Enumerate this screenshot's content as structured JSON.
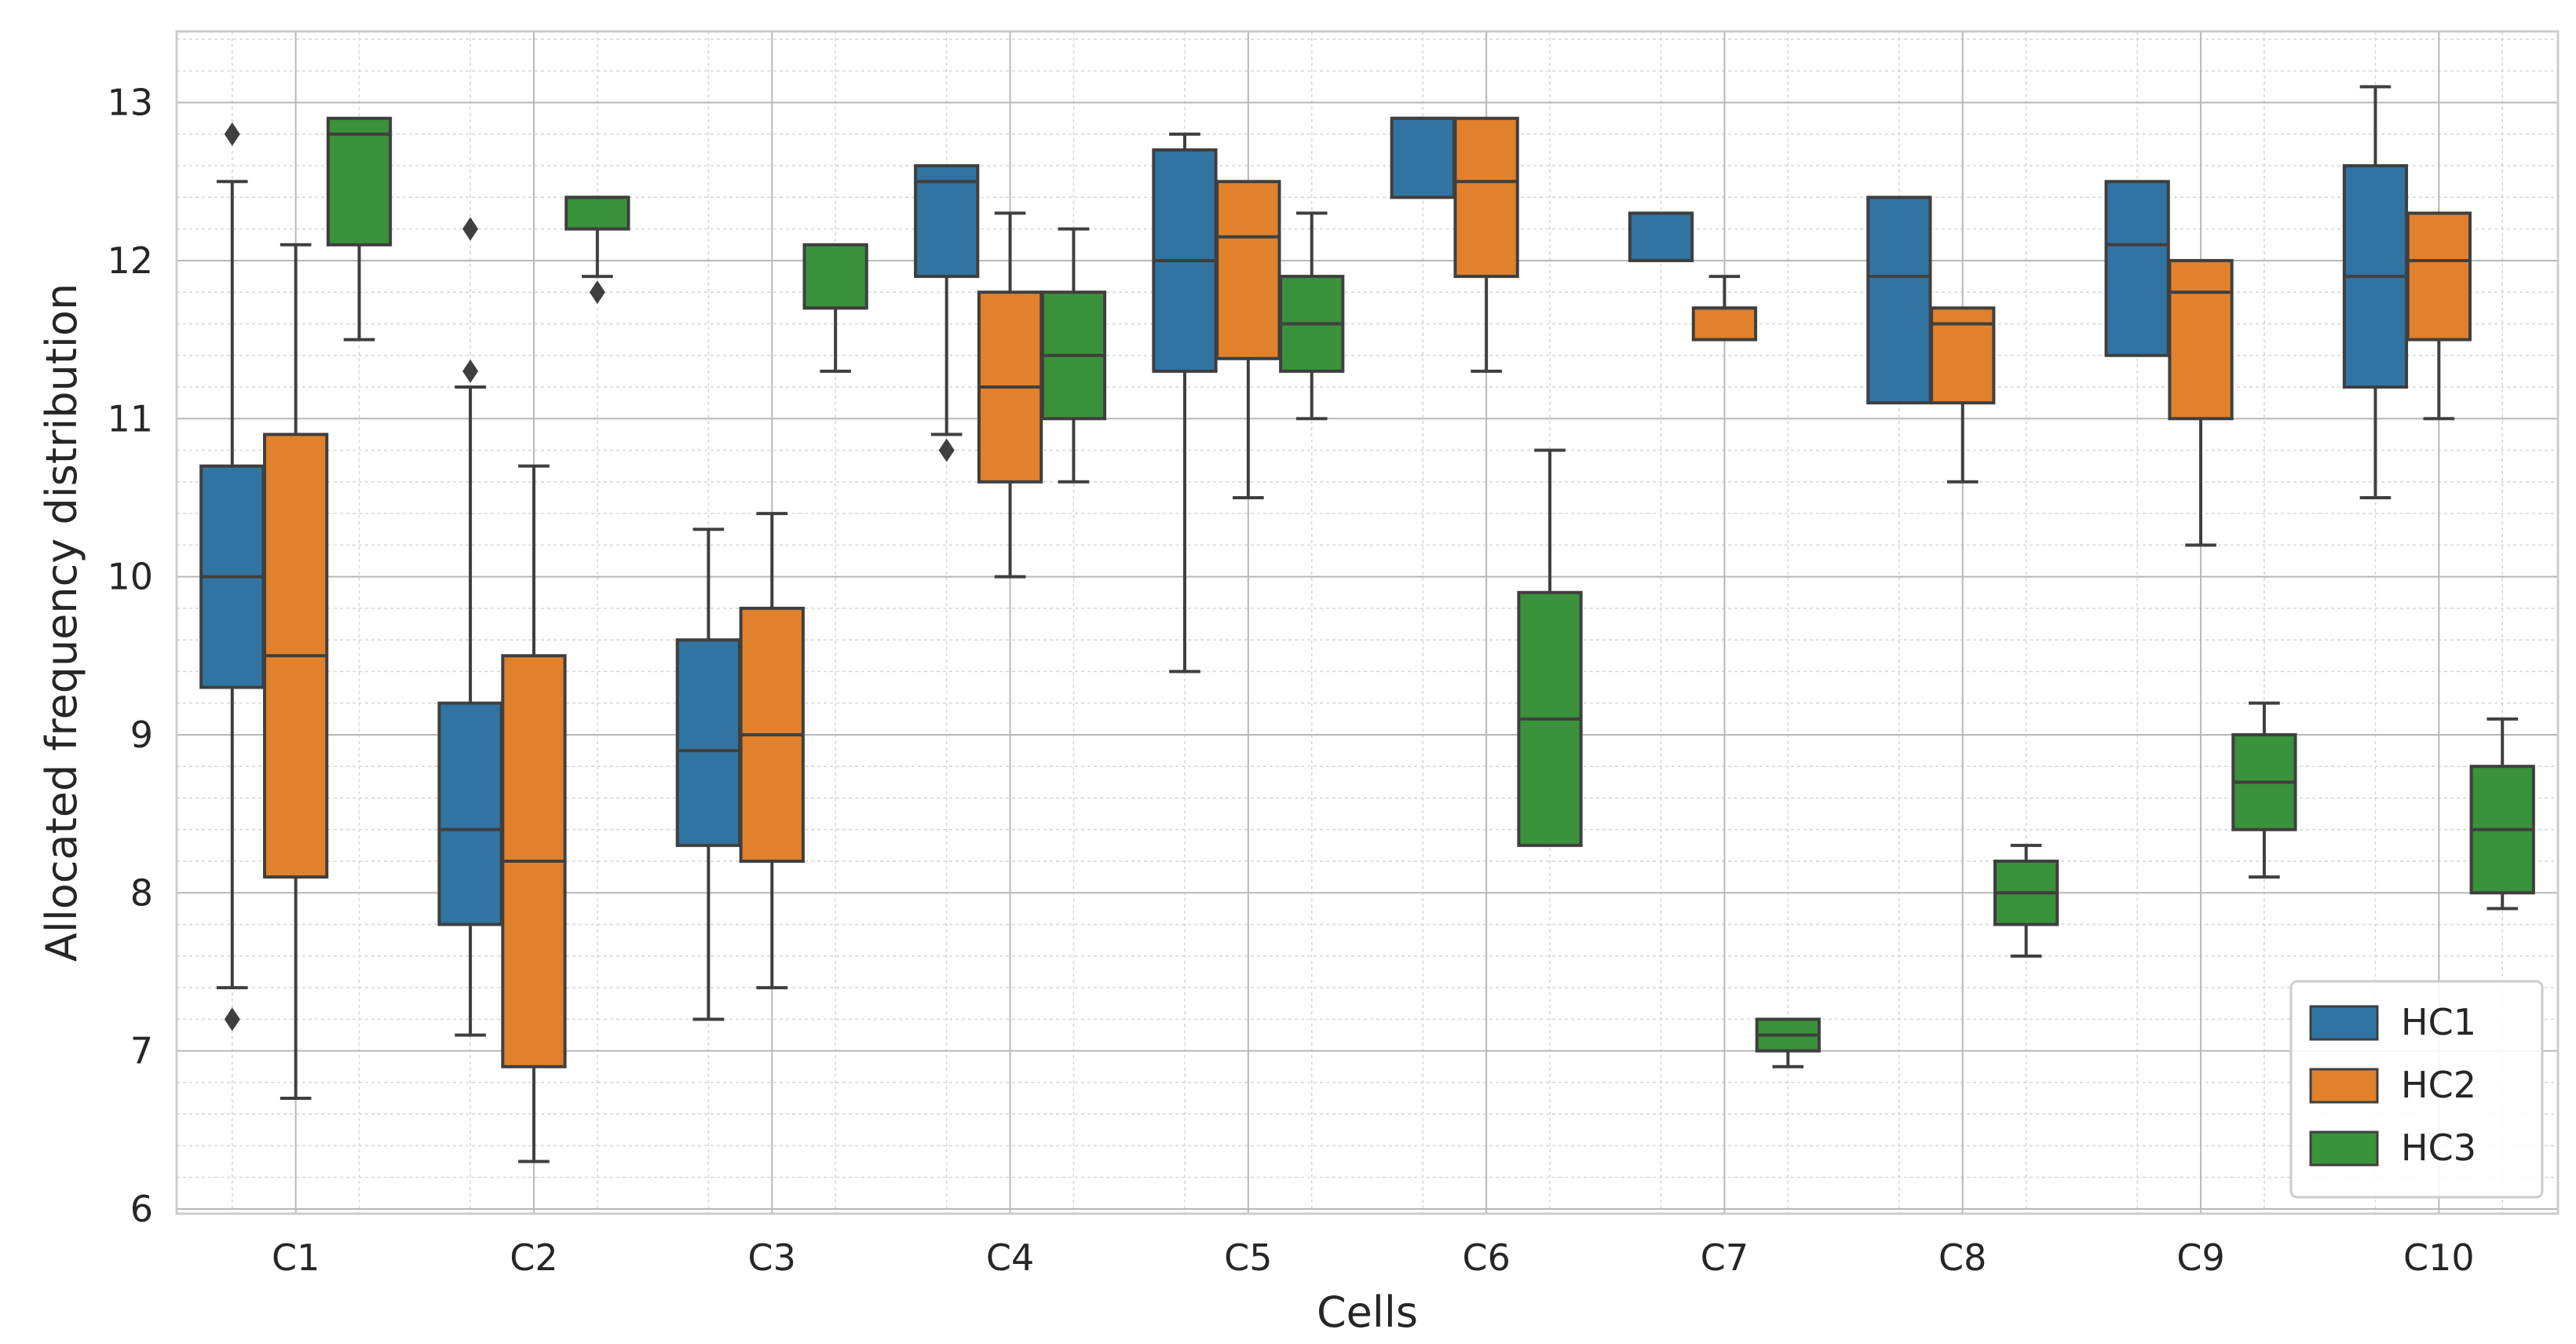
{
  "chart_data": {
    "type": "box",
    "title": "",
    "xlabel": "Cells",
    "ylabel": "Allocated frequency distribution",
    "ylim": [
      5.97,
      13.45
    ],
    "yticks": [
      6,
      7,
      8,
      9,
      10,
      11,
      12,
      13
    ],
    "minor_y_step": 0.2,
    "grid": true,
    "legend_position": "bottom-right",
    "categories": [
      "C1",
      "C2",
      "C3",
      "C4",
      "C5",
      "C6",
      "C7",
      "C8",
      "C9",
      "C10"
    ],
    "series": [
      {
        "name": "HC1",
        "color": "#3274a1",
        "boxes": [
          {
            "whislo": 7.4,
            "q1": 9.3,
            "med": 10.0,
            "q3": 10.7,
            "whishi": 12.5,
            "fliers": [
              7.2,
              12.8
            ]
          },
          {
            "whislo": 7.1,
            "q1": 7.8,
            "med": 8.4,
            "q3": 9.2,
            "whishi": 11.2,
            "fliers": [
              11.3,
              12.2
            ]
          },
          {
            "whislo": 7.2,
            "q1": 8.3,
            "med": 8.9,
            "q3": 9.6,
            "whishi": 10.3,
            "fliers": []
          },
          {
            "whislo": 10.9,
            "q1": 11.9,
            "med": 12.5,
            "q3": 12.6,
            "whishi": 12.6,
            "fliers": [
              10.8
            ]
          },
          {
            "whislo": 9.4,
            "q1": 11.3,
            "med": 12.0,
            "q3": 12.7,
            "whishi": 12.8,
            "fliers": []
          },
          {
            "whislo": 12.4,
            "q1": 12.4,
            "med": 12.9,
            "q3": 12.9,
            "whishi": 12.9,
            "fliers": []
          },
          {
            "whislo": 12.0,
            "q1": 12.0,
            "med": 12.3,
            "q3": 12.3,
            "whishi": 12.3,
            "fliers": []
          },
          {
            "whislo": 11.1,
            "q1": 11.1,
            "med": 11.9,
            "q3": 12.4,
            "whishi": 12.4,
            "fliers": []
          },
          {
            "whislo": 11.4,
            "q1": 11.4,
            "med": 12.1,
            "q3": 12.5,
            "whishi": 12.5,
            "fliers": []
          },
          {
            "whislo": 10.5,
            "q1": 11.2,
            "med": 11.9,
            "q3": 12.6,
            "whishi": 13.1,
            "fliers": []
          }
        ]
      },
      {
        "name": "HC2",
        "color": "#e1812c",
        "boxes": [
          {
            "whislo": 6.7,
            "q1": 8.1,
            "med": 9.5,
            "q3": 10.9,
            "whishi": 12.1,
            "fliers": []
          },
          {
            "whislo": 6.3,
            "q1": 6.9,
            "med": 8.2,
            "q3": 9.5,
            "whishi": 10.7,
            "fliers": []
          },
          {
            "whislo": 7.4,
            "q1": 8.2,
            "med": 9.0,
            "q3": 9.8,
            "whishi": 10.4,
            "fliers": []
          },
          {
            "whislo": 10.0,
            "q1": 10.6,
            "med": 11.2,
            "q3": 11.8,
            "whishi": 12.3,
            "fliers": []
          },
          {
            "whislo": 10.5,
            "q1": 11.38,
            "med": 12.15,
            "q3": 12.5,
            "whishi": 12.5,
            "fliers": []
          },
          {
            "whislo": 11.3,
            "q1": 11.9,
            "med": 12.5,
            "q3": 12.9,
            "whishi": 12.9,
            "fliers": []
          },
          {
            "whislo": 11.5,
            "q1": 11.5,
            "med": 11.7,
            "q3": 11.7,
            "whishi": 11.9,
            "fliers": []
          },
          {
            "whislo": 10.6,
            "q1": 11.1,
            "med": 11.6,
            "q3": 11.7,
            "whishi": 11.7,
            "fliers": []
          },
          {
            "whislo": 10.2,
            "q1": 11.0,
            "med": 11.8,
            "q3": 12.0,
            "whishi": 12.0,
            "fliers": []
          },
          {
            "whislo": 11.0,
            "q1": 11.5,
            "med": 12.0,
            "q3": 12.3,
            "whishi": 12.3,
            "fliers": []
          }
        ]
      },
      {
        "name": "HC3",
        "color": "#3a923a",
        "boxes": [
          {
            "whislo": 11.5,
            "q1": 12.1,
            "med": 12.8,
            "q3": 12.9,
            "whishi": 12.9,
            "fliers": []
          },
          {
            "whislo": 11.9,
            "q1": 12.2,
            "med": 12.4,
            "q3": 12.4,
            "whishi": 12.4,
            "fliers": [
              11.8
            ]
          },
          {
            "whislo": 11.3,
            "q1": 11.7,
            "med": 11.7,
            "q3": 12.1,
            "whishi": 12.1,
            "fliers": []
          },
          {
            "whislo": 10.6,
            "q1": 11.0,
            "med": 11.4,
            "q3": 11.8,
            "whishi": 12.2,
            "fliers": []
          },
          {
            "whislo": 11.0,
            "q1": 11.3,
            "med": 11.6,
            "q3": 11.9,
            "whishi": 12.3,
            "fliers": []
          },
          {
            "whislo": 8.3,
            "q1": 8.3,
            "med": 9.1,
            "q3": 9.9,
            "whishi": 10.8,
            "fliers": []
          },
          {
            "whislo": 6.9,
            "q1": 7.0,
            "med": 7.1,
            "q3": 7.2,
            "whishi": 7.2,
            "fliers": []
          },
          {
            "whislo": 7.6,
            "q1": 7.8,
            "med": 8.0,
            "q3": 8.2,
            "whishi": 8.3,
            "fliers": []
          },
          {
            "whislo": 8.1,
            "q1": 8.4,
            "med": 8.7,
            "q3": 9.0,
            "whishi": 9.2,
            "fliers": []
          },
          {
            "whislo": 7.9,
            "q1": 8.0,
            "med": 8.4,
            "q3": 8.8,
            "whishi": 9.1,
            "fliers": []
          }
        ]
      }
    ]
  }
}
